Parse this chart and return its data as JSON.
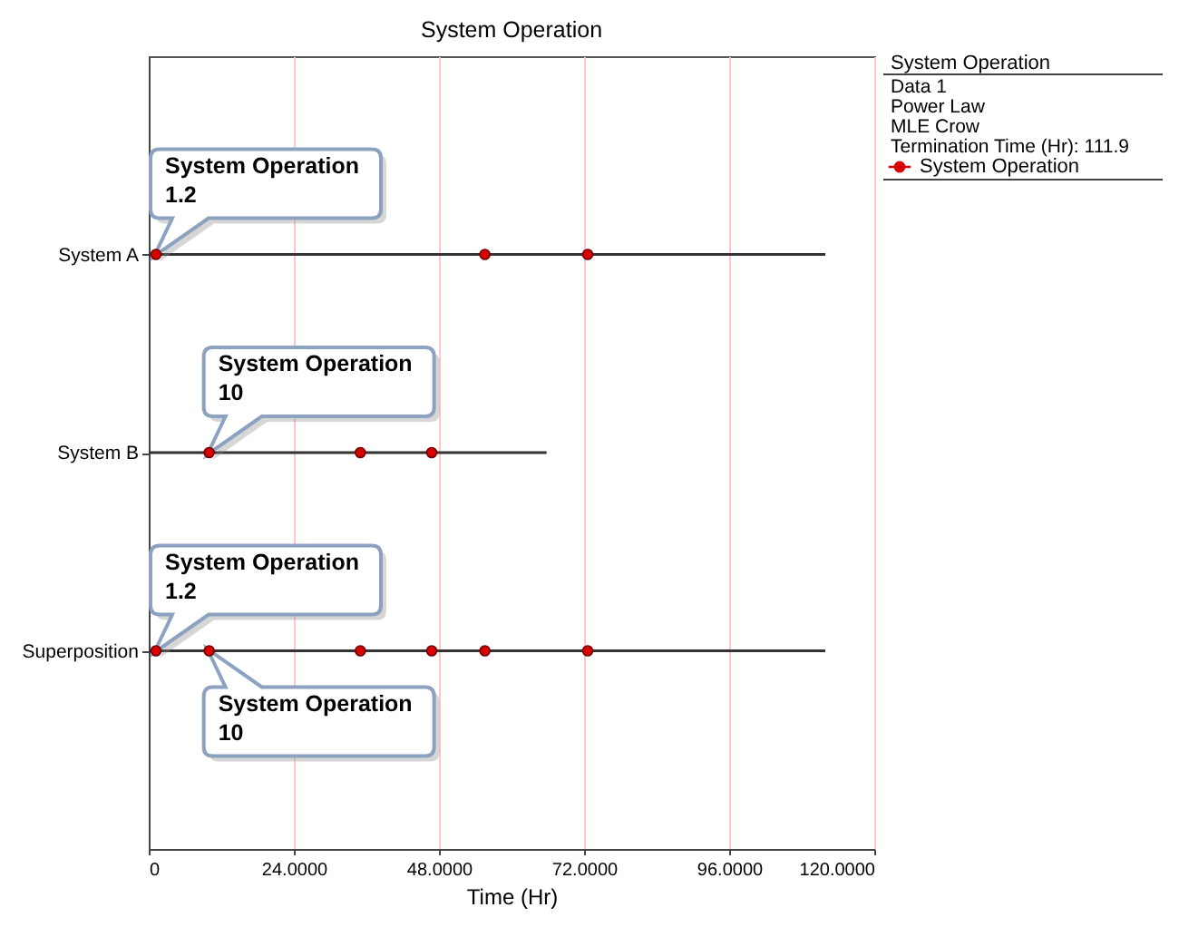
{
  "chart_data": {
    "type": "scatter",
    "orientation": "horizontal",
    "title": "System Operation",
    "xlabel": "Time (Hr)",
    "categories": [
      "System A",
      "System B",
      "Superposition"
    ],
    "series": [
      {
        "type": "bar",
        "color": "#333333",
        "values": [
          111.9,
          65.8,
          111.9
        ]
      },
      {
        "name": "System Operation",
        "color": "#d80000",
        "x": [
          "System A",
          "System A",
          "System A",
          "System B",
          "System B",
          "System B",
          "Superposition",
          "Superposition",
          "Superposition",
          "Superposition",
          "Superposition",
          "Superposition"
        ],
        "values": [
          1.2,
          55.6,
          72.6,
          10,
          35,
          46.8,
          1.2,
          10,
          35,
          46.8,
          55.6,
          72.6
        ],
        "value_labels": [
          "System Operation\n1.2",
          null,
          null,
          "System Operation\n10",
          null,
          null,
          "System Operation\n1.2",
          "System Operation\n10",
          null,
          null,
          null,
          null
        ]
      }
    ],
    "xlim": [
      0,
      120
    ],
    "xticks": [
      0,
      {
        "value": 24,
        "label": "24.0000"
      },
      {
        "value": 48,
        "label": "48.0000"
      },
      {
        "value": 72,
        "label": "72.0000"
      },
      {
        "value": 96,
        "label": "96.0000"
      },
      {
        "value": 120,
        "label": "120.0000"
      }
    ],
    "grid": "x",
    "legend": "top right",
    "legend_title": "System Operation",
    "marker": "circle",
    "annotations": [
      "Data 1",
      "Power Law",
      "MLE Crow",
      "Termination Time (Hr): 111.9"
    ]
  }
}
